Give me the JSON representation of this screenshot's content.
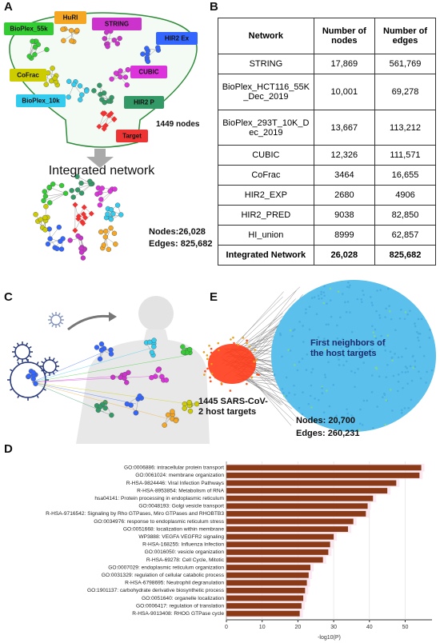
{
  "panel_labels": [
    "A",
    "B",
    "C",
    "D",
    "E"
  ],
  "network_a": {
    "sources": [
      "BioPlex_55k",
      "HuRI",
      "STRING",
      "HIR2 Ex",
      "CoFrac",
      "CUBIC",
      "BioPlex_10k",
      "HIR2 P"
    ],
    "target": "Target",
    "count_label": "1449 nodes",
    "title": "Integrated network",
    "nodes": "Nodes:26,028",
    "edges": "Edges: 825,682"
  },
  "table": {
    "header": [
      "Network",
      "Number of nodes",
      "Number of edges"
    ],
    "rows": [
      [
        "STRING",
        "17,869",
        "561,769"
      ],
      [
        "BioPlex_HCT116_55K_Dec_2019",
        "10,001",
        "69,278"
      ],
      [
        "BioPlex_293T_10K_Dec_2019",
        "13,667",
        "113,212"
      ],
      [
        "CUBIC",
        "12,326",
        "111,571"
      ],
      [
        "CoFrac",
        "3464",
        "16,655"
      ],
      [
        "HIR2_EXP",
        "2680",
        "4906"
      ],
      [
        "HIR2_PRED",
        "9038",
        "82,850"
      ],
      [
        "HI_union",
        "8999",
        "62,857"
      ],
      [
        "Integrated Network",
        "26,028",
        "825,682"
      ]
    ]
  },
  "panel_e": {
    "neighbors": "First neighbors of the host targets",
    "targets": "1445 SARS-CoV-2 host targets",
    "nodes": "Nodes: 20,700",
    "edges": "Edges: 260,231"
  },
  "chart_data": {
    "type": "barh",
    "xlabel": "-log10(P)",
    "categories": [
      "GO:0006886: intracellular protein transport",
      "GO:0061024: membrane organization",
      "R-HSA-9824446: Viral Infection Pathways",
      "R-HSA-8953854: Metabolism of RNA",
      "hsa04141: Protein processing in endoplasmic reticulum",
      "GO:0048193: Golgi vesicle transport",
      "R-HSA-9716542: Signaling by Rho GTPases, Miro GTPases and RHOBTB3",
      "GO:0034976: response to endoplasmic reticulum stress",
      "GO:0051668: localization within membrane",
      "WP3888: VEGFA VEGFR2 signaling",
      "R-HSA-168255: Influenza Infection",
      "GO:0016050: vesicle organization",
      "R-HSA-69278: Cell Cycle, Mitotic",
      "GO:0007029: endoplasmic reticulum organization",
      "GO:0031329: regulation of cellular catabolic process",
      "R-HSA-6798695: Neutrophil degranulation",
      "GO:1901137: carbohydrate derivative biosynthetic process",
      "GO:0051640: organelle localization",
      "GO:0006417: regulation of translation",
      "R-HSA-9013408: RHOG GTPase cycle"
    ],
    "values": [
      54.5,
      54,
      47.5,
      45,
      41,
      39.5,
      39,
      35.5,
      34,
      30,
      29,
      28.5,
      27,
      23.5,
      23,
      22.5,
      22,
      21.5,
      21,
      20.5
    ],
    "color": "#8b3a17",
    "xlim": [
      0,
      57.5
    ],
    "xticks": [
      0,
      10,
      20,
      30,
      40,
      50
    ],
    "grid": true
  }
}
